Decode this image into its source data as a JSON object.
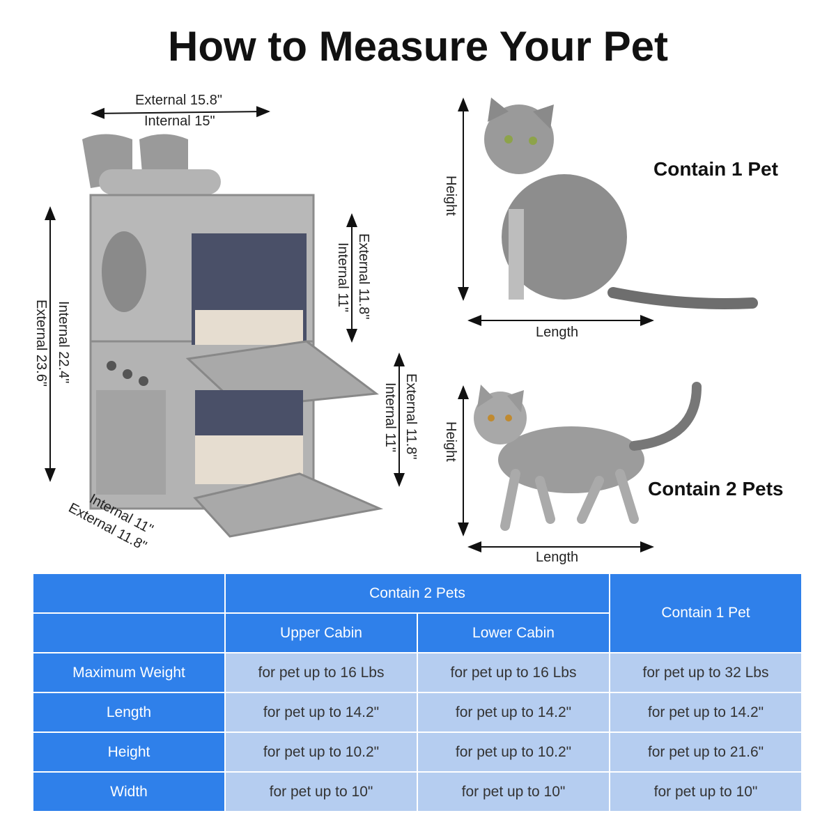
{
  "title": "How to Measure Your Pet",
  "backpack": {
    "width_external": "External 15.8\"",
    "width_internal": "Internal 15\"",
    "height_external": "External 23.6\"",
    "height_internal": "Internal 22.4\"",
    "upper_external": "External 11.8\"",
    "upper_internal": "Internal 11\"",
    "lower_external": "External 11.8\"",
    "lower_internal": "Internal 11\"",
    "depth_internal": "Internal 11\"",
    "depth_external": "External 11.8\""
  },
  "pet1": {
    "label": "Contain 1 Pet",
    "height": "Height",
    "length": "Length"
  },
  "pet2": {
    "label": "Contain 2 Pets",
    "height": "Height",
    "length": "Length"
  },
  "colors": {
    "header_blue": "#2f80ea",
    "cell_blue": "#b5cdf0"
  },
  "table": {
    "group2": "Contain 2 Pets",
    "group1": "Contain 1 Pet",
    "upper": "Upper Cabin",
    "lower": "Lower Cabin",
    "rows": [
      {
        "label": "Maximum Weight",
        "upper": "for pet up to 16 Lbs",
        "lower": "for pet up to 16 Lbs",
        "one": "for pet up to 32 Lbs"
      },
      {
        "label": "Length",
        "upper": "for pet up to 14.2\"",
        "lower": "for pet up to 14.2\"",
        "one": "for pet up to 14.2\""
      },
      {
        "label": "Height",
        "upper": "for pet up to 10.2\"",
        "lower": "for pet up to 10.2\"",
        "one": "for pet up to 21.6\""
      },
      {
        "label": "Width",
        "upper": "for pet up to 10\"",
        "lower": "for pet up to 10\"",
        "one": "for pet up to 10\""
      }
    ]
  }
}
